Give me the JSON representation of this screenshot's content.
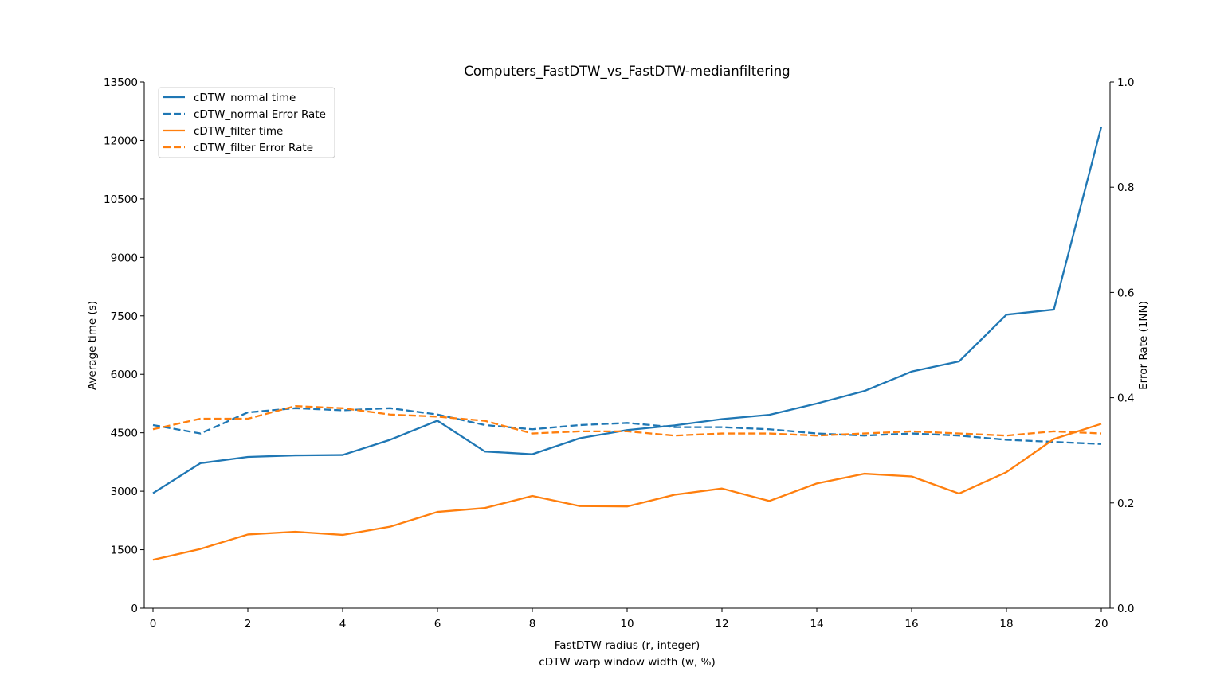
{
  "chart_data": {
    "type": "line",
    "title": "Computers_FastDTW_vs_FastDTW-medianfiltering",
    "xlabel_line1": "FastDTW radius (r, integer)",
    "xlabel_line2": "cDTW warp window width (w, %)",
    "ylabel_left": "Average time (s)",
    "ylabel_right": "Error Rate (1NN)",
    "xlim": [
      0,
      20
    ],
    "ylim_left": [
      0,
      13500
    ],
    "ylim_right": [
      0.0,
      1.0
    ],
    "x_ticks": [
      0,
      2,
      4,
      6,
      8,
      10,
      12,
      14,
      16,
      18,
      20
    ],
    "y_left_ticks": [
      0,
      1500,
      3000,
      4500,
      6000,
      7500,
      9000,
      10500,
      12000,
      13500
    ],
    "y_right_ticks": [
      "0.0",
      "0.2",
      "0.4",
      "0.6",
      "0.8",
      "1.0"
    ],
    "grid": false,
    "legend_position": "top-left",
    "x": [
      0,
      1,
      2,
      3,
      4,
      5,
      6,
      7,
      8,
      9,
      10,
      11,
      12,
      13,
      14,
      15,
      16,
      17,
      18,
      19,
      20
    ],
    "series": [
      {
        "name": "cDTW_normal time",
        "axis": "left",
        "style": "solid",
        "color": "#1f77b4",
        "values": [
          2950,
          3720,
          3880,
          3920,
          3930,
          4320,
          4810,
          4020,
          3950,
          4360,
          4570,
          4690,
          4850,
          4960,
          5250,
          5570,
          6070,
          6330,
          7530,
          7660,
          12350
        ]
      },
      {
        "name": "cDTW_normal Error Rate",
        "axis": "right",
        "style": "dashed",
        "color": "#1f77b4",
        "values": [
          0.348,
          0.332,
          0.372,
          0.38,
          0.376,
          0.38,
          0.368,
          0.348,
          0.34,
          0.348,
          0.352,
          0.344,
          0.344,
          0.34,
          0.332,
          0.328,
          0.332,
          0.328,
          0.32,
          0.316,
          0.312
        ]
      },
      {
        "name": "cDTW_filter time",
        "axis": "left",
        "style": "solid",
        "color": "#ff7f0e",
        "values": [
          1240,
          1520,
          1890,
          1960,
          1880,
          2090,
          2470,
          2570,
          2880,
          2620,
          2610,
          2910,
          3070,
          2750,
          3200,
          3450,
          3380,
          2940,
          3490,
          4340,
          4730
        ]
      },
      {
        "name": "cDTW_filter Error Rate",
        "axis": "right",
        "style": "dashed",
        "color": "#ff7f0e",
        "values": [
          0.34,
          0.36,
          0.36,
          0.384,
          0.38,
          0.368,
          0.364,
          0.356,
          0.332,
          0.336,
          0.336,
          0.328,
          0.332,
          0.332,
          0.328,
          0.332,
          0.336,
          0.332,
          0.328,
          0.336,
          0.332
        ]
      }
    ]
  }
}
